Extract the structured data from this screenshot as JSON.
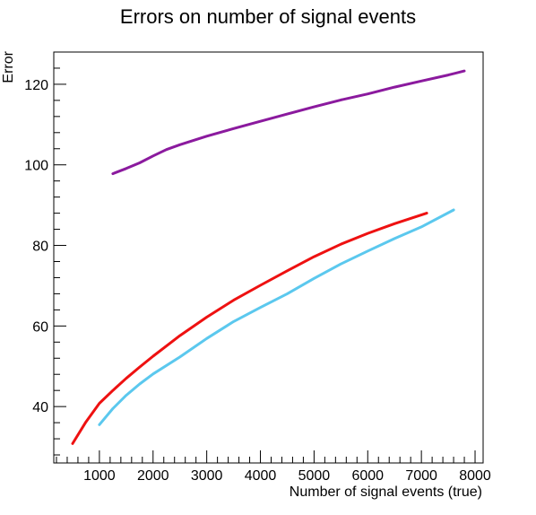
{
  "chart_data": {
    "type": "line",
    "title": "Errors on number of signal events",
    "xlabel": "Number of signal events (true)",
    "ylabel": "Error",
    "xlim": [
      150,
      8150
    ],
    "ylim": [
      26,
      128
    ],
    "x_ticks": [
      1000,
      2000,
      3000,
      4000,
      5000,
      6000,
      7000,
      8000
    ],
    "y_ticks": [
      40,
      60,
      80,
      100,
      120
    ],
    "x_minor_step": 200,
    "y_minor_step": 4,
    "grid": false,
    "legend": "none",
    "series": [
      {
        "color": "#8b1a9e",
        "x": [
          1250,
          1500,
          1750,
          2000,
          2250,
          2500,
          3000,
          3500,
          4000,
          4500,
          5000,
          5500,
          6000,
          6500,
          7000,
          7500,
          7800
        ],
        "y": [
          97.8,
          99.1,
          100.5,
          102.2,
          103.8,
          105.0,
          107.1,
          109.0,
          110.8,
          112.6,
          114.4,
          116.1,
          117.6,
          119.3,
          120.8,
          122.3,
          123.3
        ]
      },
      {
        "color": "#ee1111",
        "x": [
          500,
          750,
          1000,
          1250,
          1500,
          1750,
          2000,
          2500,
          3000,
          3500,
          4000,
          4500,
          5000,
          5500,
          6000,
          6500,
          7100
        ],
        "y": [
          30.8,
          36.2,
          40.8,
          44.0,
          47.0,
          49.8,
          52.5,
          57.6,
          62.2,
          66.4,
          70.1,
          73.7,
          77.2,
          80.3,
          83.0,
          85.4,
          88.0
        ]
      },
      {
        "color": "#5bc8ee",
        "x": [
          1000,
          1250,
          1500,
          1750,
          2000,
          2500,
          3000,
          3500,
          4000,
          4500,
          5000,
          5500,
          6000,
          6500,
          7000,
          7600
        ],
        "y": [
          35.5,
          39.5,
          42.8,
          45.6,
          48.1,
          52.3,
          56.9,
          61.1,
          64.6,
          68.0,
          71.8,
          75.4,
          78.6,
          81.7,
          84.6,
          88.8
        ]
      }
    ]
  }
}
